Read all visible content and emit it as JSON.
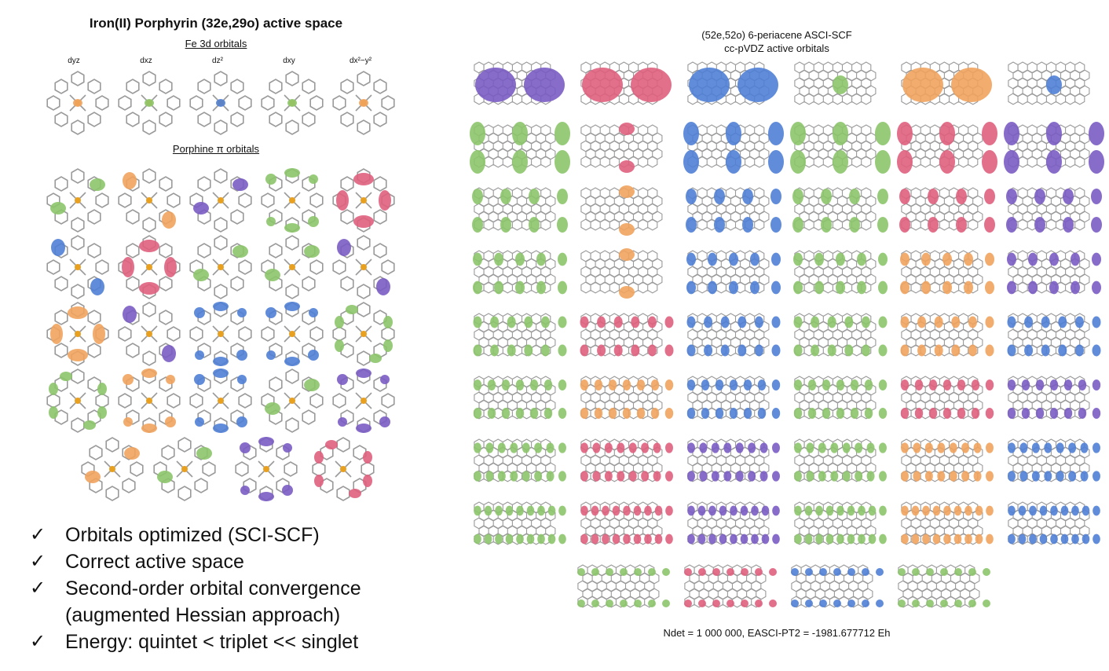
{
  "left": {
    "title": "Iron(II) Porphyrin (32e,29o) active space",
    "fe_heading": "Fe 3d orbitals",
    "d_labels": [
      "dyz",
      "dxz",
      "dz²",
      "dxy",
      "dx²−y²"
    ],
    "pi_heading": "Porphine π orbitals"
  },
  "right": {
    "title_line1": "(52e,52o) 6-periacene ASCI-SCF",
    "title_line2": "cc-pVDZ active orbitals",
    "footnote": "Ndet = 1 000 000, EASCI-PT2 = -1981.677712 Eh"
  },
  "bullets": [
    {
      "icon": "check-icon",
      "text": "Orbitals optimized (SCI-SCF)"
    },
    {
      "icon": "check-icon",
      "text": "Correct active space"
    },
    {
      "icon": "check-icon",
      "text": "Second-order orbital convergence"
    },
    {
      "icon": "",
      "text": "(augmented Hessian approach)"
    },
    {
      "icon": "check-icon",
      "text": "Energy: quintet < triplet << singlet"
    }
  ],
  "colors": {
    "green": "#8cc56a",
    "orange": "#f0a35e",
    "purple": "#7a5cc4",
    "blue": "#4f7fd6",
    "pink": "#e0607e",
    "teal": "#7fc8a9",
    "fe": "#e8a020",
    "nitrogen": "#7fb8e0",
    "bond": "#9a9a9a"
  }
}
